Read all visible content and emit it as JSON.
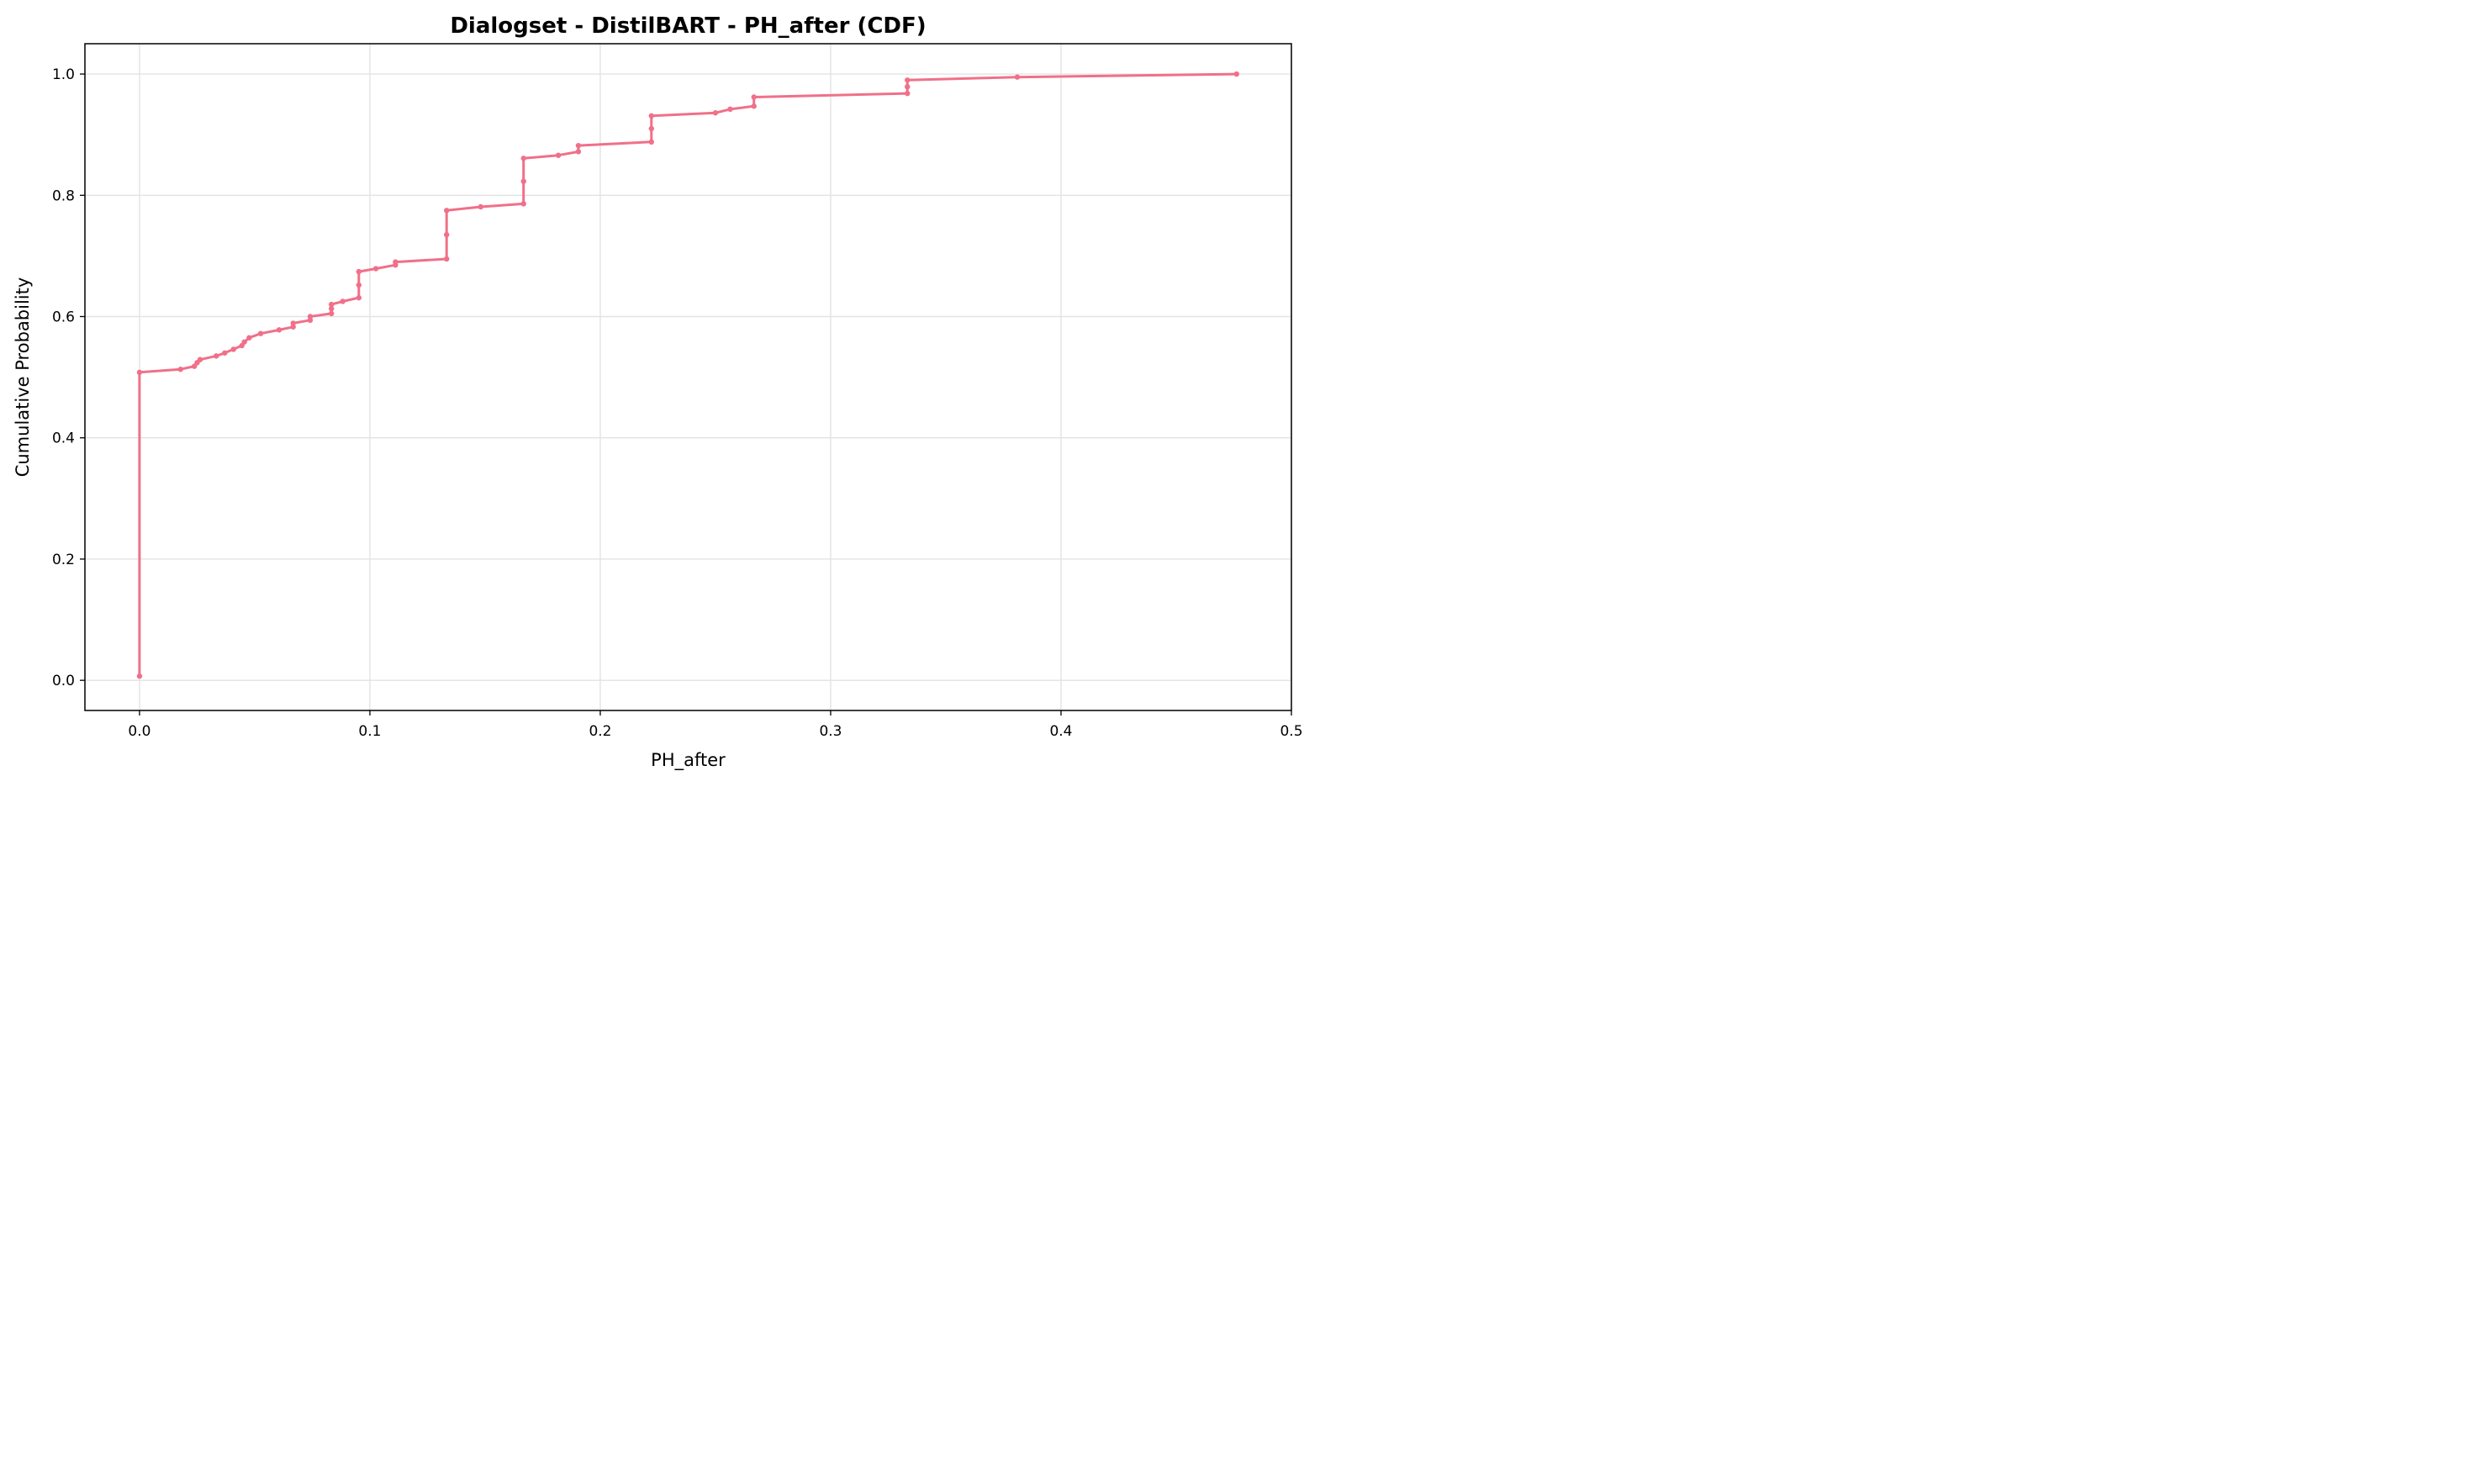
{
  "chart_data": {
    "type": "line",
    "title": "Dialogset - DistilBART - PH_after (CDF)",
    "xlabel": "PH_after",
    "ylabel": "Cumulative Probability",
    "xlim": [
      -0.0237,
      0.5
    ],
    "ylim": [
      -0.0497,
      1.05
    ],
    "xticks": [
      0.0,
      0.1,
      0.2,
      0.3,
      0.4,
      0.5
    ],
    "xtick_labels": [
      "0.0",
      "0.1",
      "0.2",
      "0.3",
      "0.4",
      "0.5"
    ],
    "yticks": [
      0.0,
      0.2,
      0.4,
      0.6,
      0.8,
      1.0
    ],
    "ytick_labels": [
      "0.0",
      "0.2",
      "0.4",
      "0.6",
      "0.8",
      "1.0"
    ],
    "grid": true,
    "line_color": "#f07089",
    "series": [
      {
        "x": [
          0.0,
          0.0,
          0.0178,
          0.0238,
          0.025,
          0.0263,
          0.0333,
          0.037,
          0.0408,
          0.0444,
          0.0455,
          0.0476,
          0.0526,
          0.0606,
          0.0667,
          0.0667,
          0.0741,
          0.0741,
          0.0833,
          0.0833,
          0.0833,
          0.0882,
          0.0952,
          0.0952,
          0.0952,
          0.1026,
          0.1111,
          0.1111,
          0.1333,
          0.1333,
          0.1333,
          0.1481,
          0.1667,
          0.1667,
          0.1667,
          0.1818,
          0.1905,
          0.1905,
          0.2222,
          0.2222,
          0.2222,
          0.25,
          0.2564,
          0.2667,
          0.2667,
          0.3333,
          0.3333,
          0.3333,
          0.381,
          0.4762
        ],
        "y": [
          0.007,
          0.508,
          0.513,
          0.518,
          0.524,
          0.529,
          0.535,
          0.54,
          0.546,
          0.552,
          0.558,
          0.565,
          0.572,
          0.578,
          0.583,
          0.589,
          0.594,
          0.6,
          0.605,
          0.613,
          0.62,
          0.625,
          0.631,
          0.652,
          0.674,
          0.679,
          0.685,
          0.69,
          0.695,
          0.735,
          0.775,
          0.781,
          0.786,
          0.823,
          0.861,
          0.866,
          0.872,
          0.882,
          0.888,
          0.91,
          0.931,
          0.936,
          0.942,
          0.947,
          0.962,
          0.968,
          0.979,
          0.99,
          0.995,
          1.0
        ]
      }
    ]
  }
}
